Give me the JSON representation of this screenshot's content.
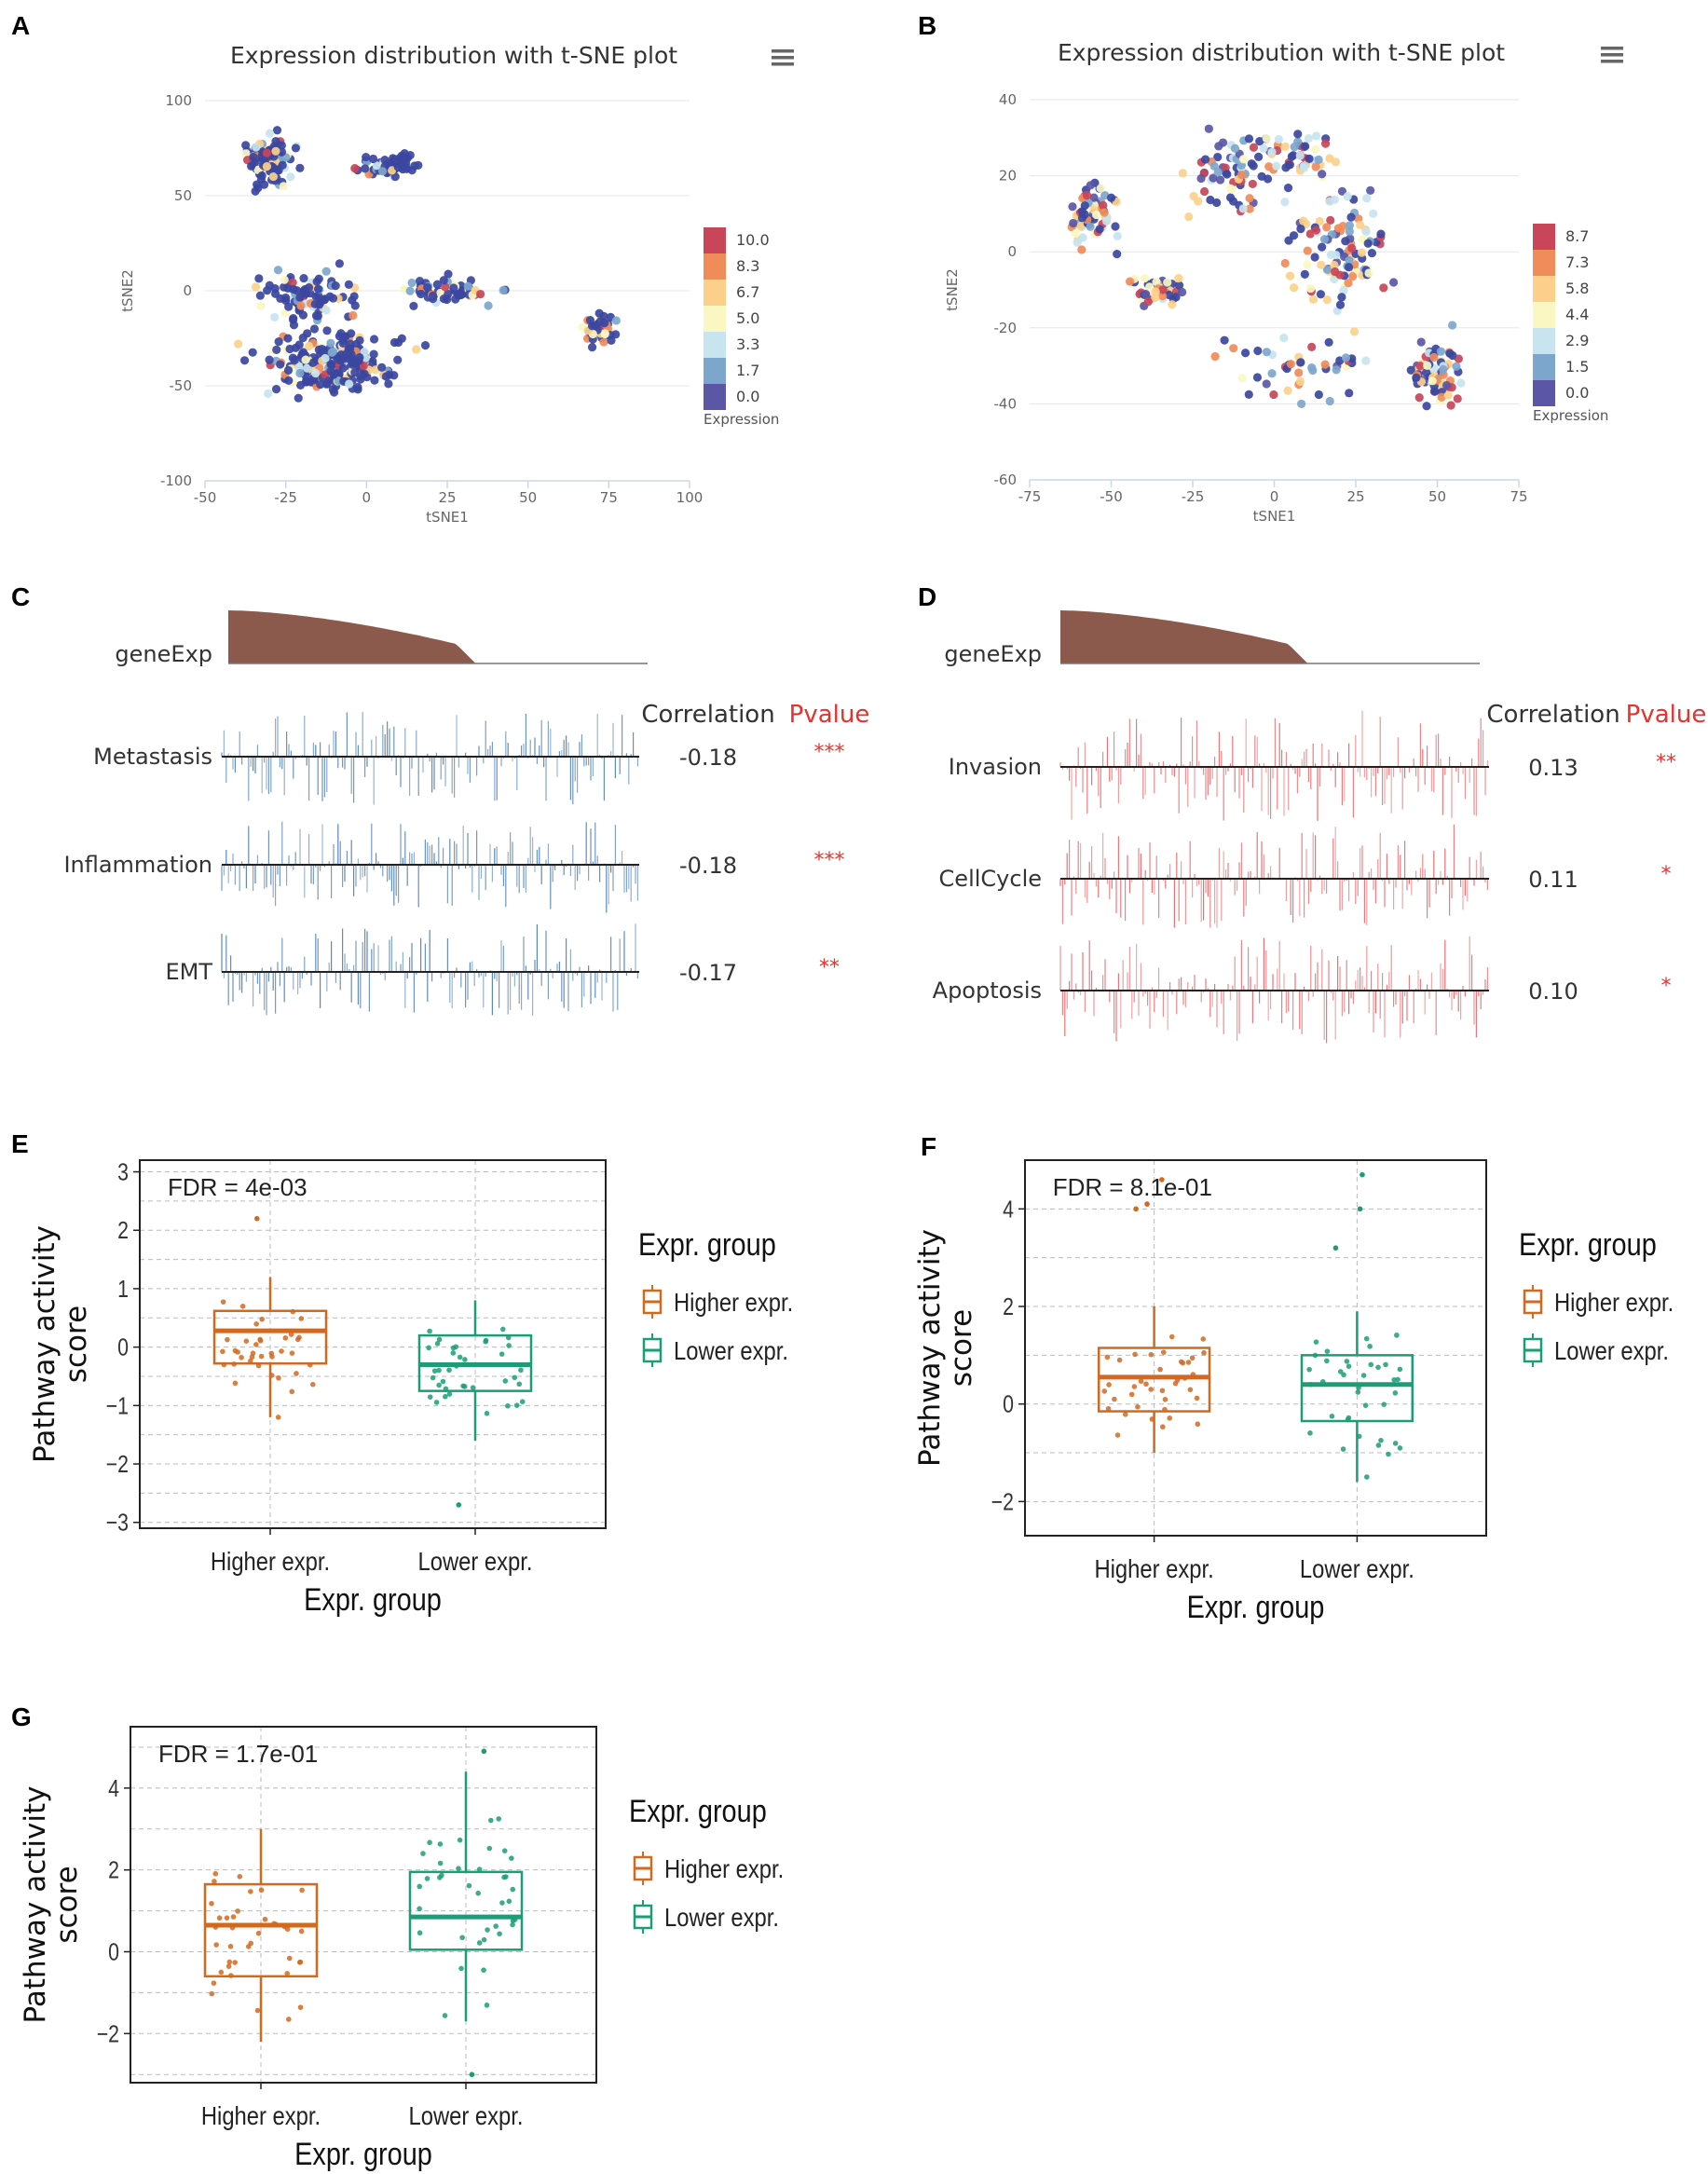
{
  "panels": {
    "a": "A",
    "b": "B",
    "c": "C",
    "d": "D",
    "e": "E",
    "f": "F",
    "g": "G"
  },
  "colors": {
    "scale": [
      "#5b57a6",
      "#7da6cd",
      "#c7e4ef",
      "#fbf7c3",
      "#fcd08a",
      "#f08c5a",
      "#c8455a"
    ],
    "dot_dark": "#3b46a0",
    "blue_bar": "#4f7fb3",
    "red_bar": "#e8676b",
    "pvalue": "#e5322d",
    "higher": "#d2691e",
    "lower": "#1b9e77",
    "area": "#8b5a4c",
    "grid": "#bbbbbb"
  },
  "chart_data": [
    {
      "id": "A",
      "type": "scatter",
      "title": "Expression distribution with t-SNE plot",
      "menu_icon": "menu-icon",
      "xlabel": "tSNE1",
      "ylabel": "tSNE2",
      "xlim": [
        -50,
        100
      ],
      "ylim": [
        -100,
        100
      ],
      "xticks": [
        "-50",
        "-25",
        "0",
        "25",
        "50",
        "75",
        "100"
      ],
      "yticks": [
        "100",
        "50",
        "0",
        "-50",
        "-100"
      ],
      "legend_title": "Expression",
      "legend_values": [
        "10.0",
        "8.3",
        "6.7",
        "5.0",
        "3.3",
        "1.7",
        "0.0"
      ],
      "clusters": [
        {
          "cx": -30,
          "cy": 68,
          "sx": 6,
          "sy": 9,
          "n": 110
        },
        {
          "cx": 8,
          "cy": 66,
          "sx": 6,
          "sy": 4,
          "n": 75
        },
        {
          "cx": -18,
          "cy": -2,
          "sx": 10,
          "sy": 10,
          "n": 90
        },
        {
          "cx": 25,
          "cy": 0,
          "sx": 10,
          "sy": 5,
          "n": 60
        },
        {
          "cx": -10,
          "cy": -38,
          "sx": 16,
          "sy": 11,
          "n": 230
        },
        {
          "cx": 72,
          "cy": -20,
          "sx": 4,
          "sy": 5,
          "n": 45
        }
      ]
    },
    {
      "id": "B",
      "type": "scatter",
      "title": "Expression distribution with t-SNE plot",
      "menu_icon": "menu-icon",
      "xlabel": "tSNE1",
      "ylabel": "tSNE2",
      "xlim": [
        -75,
        75
      ],
      "ylim": [
        -60,
        40
      ],
      "xticks": [
        "-75",
        "-50",
        "-25",
        "0",
        "25",
        "50",
        "75"
      ],
      "yticks": [
        "40",
        "20",
        "0",
        "-20",
        "-40",
        "-60"
      ],
      "legend_title": "Expression",
      "legend_values": [
        "8.7",
        "7.3",
        "5.8",
        "4.4",
        "2.9",
        "1.5",
        "0.0"
      ],
      "clusters": [
        {
          "cx": -55,
          "cy": 10,
          "sx": 6,
          "sy": 6,
          "n": 60
        },
        {
          "cx": -35,
          "cy": -10,
          "sx": 6,
          "sy": 3,
          "n": 45
        },
        {
          "cx": -15,
          "cy": 20,
          "sx": 8,
          "sy": 8,
          "n": 55
        },
        {
          "cx": 5,
          "cy": 25,
          "sx": 10,
          "sy": 5,
          "n": 60
        },
        {
          "cx": 20,
          "cy": 0,
          "sx": 10,
          "sy": 12,
          "n": 110
        },
        {
          "cx": 50,
          "cy": -32,
          "sx": 5,
          "sy": 6,
          "n": 70
        },
        {
          "cx": 10,
          "cy": -30,
          "sx": 18,
          "sy": 8,
          "n": 45
        }
      ]
    },
    {
      "id": "C",
      "type": "correlation_barcode",
      "area_label": "geneExp",
      "header_corr": "Correlation",
      "header_p": "Pvalue",
      "rows": [
        {
          "label": "Metastasis",
          "corr": "-0.18",
          "p": "***"
        },
        {
          "label": "Inflammation",
          "corr": "-0.18",
          "p": "***"
        },
        {
          "label": "EMT",
          "corr": "-0.17",
          "p": "**"
        }
      ]
    },
    {
      "id": "D",
      "type": "correlation_barcode",
      "area_label": "geneExp",
      "header_corr": "Correlation",
      "header_p": "Pvalue",
      "rows": [
        {
          "label": "Invasion",
          "corr": "0.13",
          "p": "**"
        },
        {
          "label": "CellCycle",
          "corr": "0.11",
          "p": "*"
        },
        {
          "label": "Apoptosis",
          "corr": "0.10",
          "p": "*"
        }
      ]
    },
    {
      "id": "E",
      "type": "boxplot",
      "fdr": "FDR = 4e-03",
      "xlabel": "Expr. group",
      "ylabel": "Pathway activity score",
      "ylabel_lines": [
        "Pathway activity",
        "score"
      ],
      "ylim": [
        -3.1,
        3.2
      ],
      "yticks": [
        3,
        2,
        1,
        0,
        -1,
        -2,
        -3
      ],
      "categories": [
        "Higher expr.",
        "Lower expr."
      ],
      "legend_title": "Expr. group",
      "legend_items": [
        "Higher expr.",
        "Lower expr."
      ],
      "boxes": [
        {
          "q1": -0.28,
          "median": 0.28,
          "q3": 0.62,
          "lo": -1.2,
          "hi": 1.2
        },
        {
          "q1": -0.75,
          "median": -0.3,
          "q3": 0.2,
          "lo": -1.6,
          "hi": 0.8
        }
      ],
      "outliers": [
        [
          2.2
        ],
        [
          -2.7
        ]
      ]
    },
    {
      "id": "F",
      "type": "boxplot",
      "fdr": "FDR = 8.1e-01",
      "xlabel": "Expr. group",
      "ylabel": "Pathway activity score",
      "ylabel_lines": [
        "Pathway activity",
        "score"
      ],
      "ylim": [
        -2.7,
        5.0
      ],
      "yticks": [
        4,
        2,
        0,
        -2
      ],
      "categories": [
        "Higher expr.",
        "Lower expr."
      ],
      "legend_title": "Expr. group",
      "legend_items": [
        "Higher expr.",
        "Lower expr."
      ],
      "boxes": [
        {
          "q1": -0.15,
          "median": 0.55,
          "q3": 1.15,
          "lo": -1.0,
          "hi": 2.0
        },
        {
          "q1": -0.35,
          "median": 0.4,
          "q3": 1.0,
          "lo": -1.6,
          "hi": 1.9
        }
      ],
      "outliers": [
        [
          4.0,
          4.1,
          4.6
        ],
        [
          3.2,
          4.0,
          4.7
        ]
      ]
    },
    {
      "id": "G",
      "type": "boxplot",
      "fdr": "FDR = 1.7e-01",
      "xlabel": "Expr. group",
      "ylabel": "Pathway activity score",
      "ylabel_lines": [
        "Pathway activity",
        "score"
      ],
      "ylim": [
        -3.2,
        5.5
      ],
      "yticks": [
        4,
        2,
        0,
        -2
      ],
      "categories": [
        "Higher expr.",
        "Lower expr."
      ],
      "legend_title": "Expr. group",
      "legend_items": [
        "Higher expr.",
        "Lower expr."
      ],
      "boxes": [
        {
          "q1": -0.6,
          "median": 0.65,
          "q3": 1.65,
          "lo": -2.2,
          "hi": 3.0
        },
        {
          "q1": 0.05,
          "median": 0.85,
          "q3": 1.95,
          "lo": -1.7,
          "hi": 4.4
        }
      ],
      "outliers": [
        [],
        [
          4.9,
          -3.0
        ]
      ]
    }
  ]
}
